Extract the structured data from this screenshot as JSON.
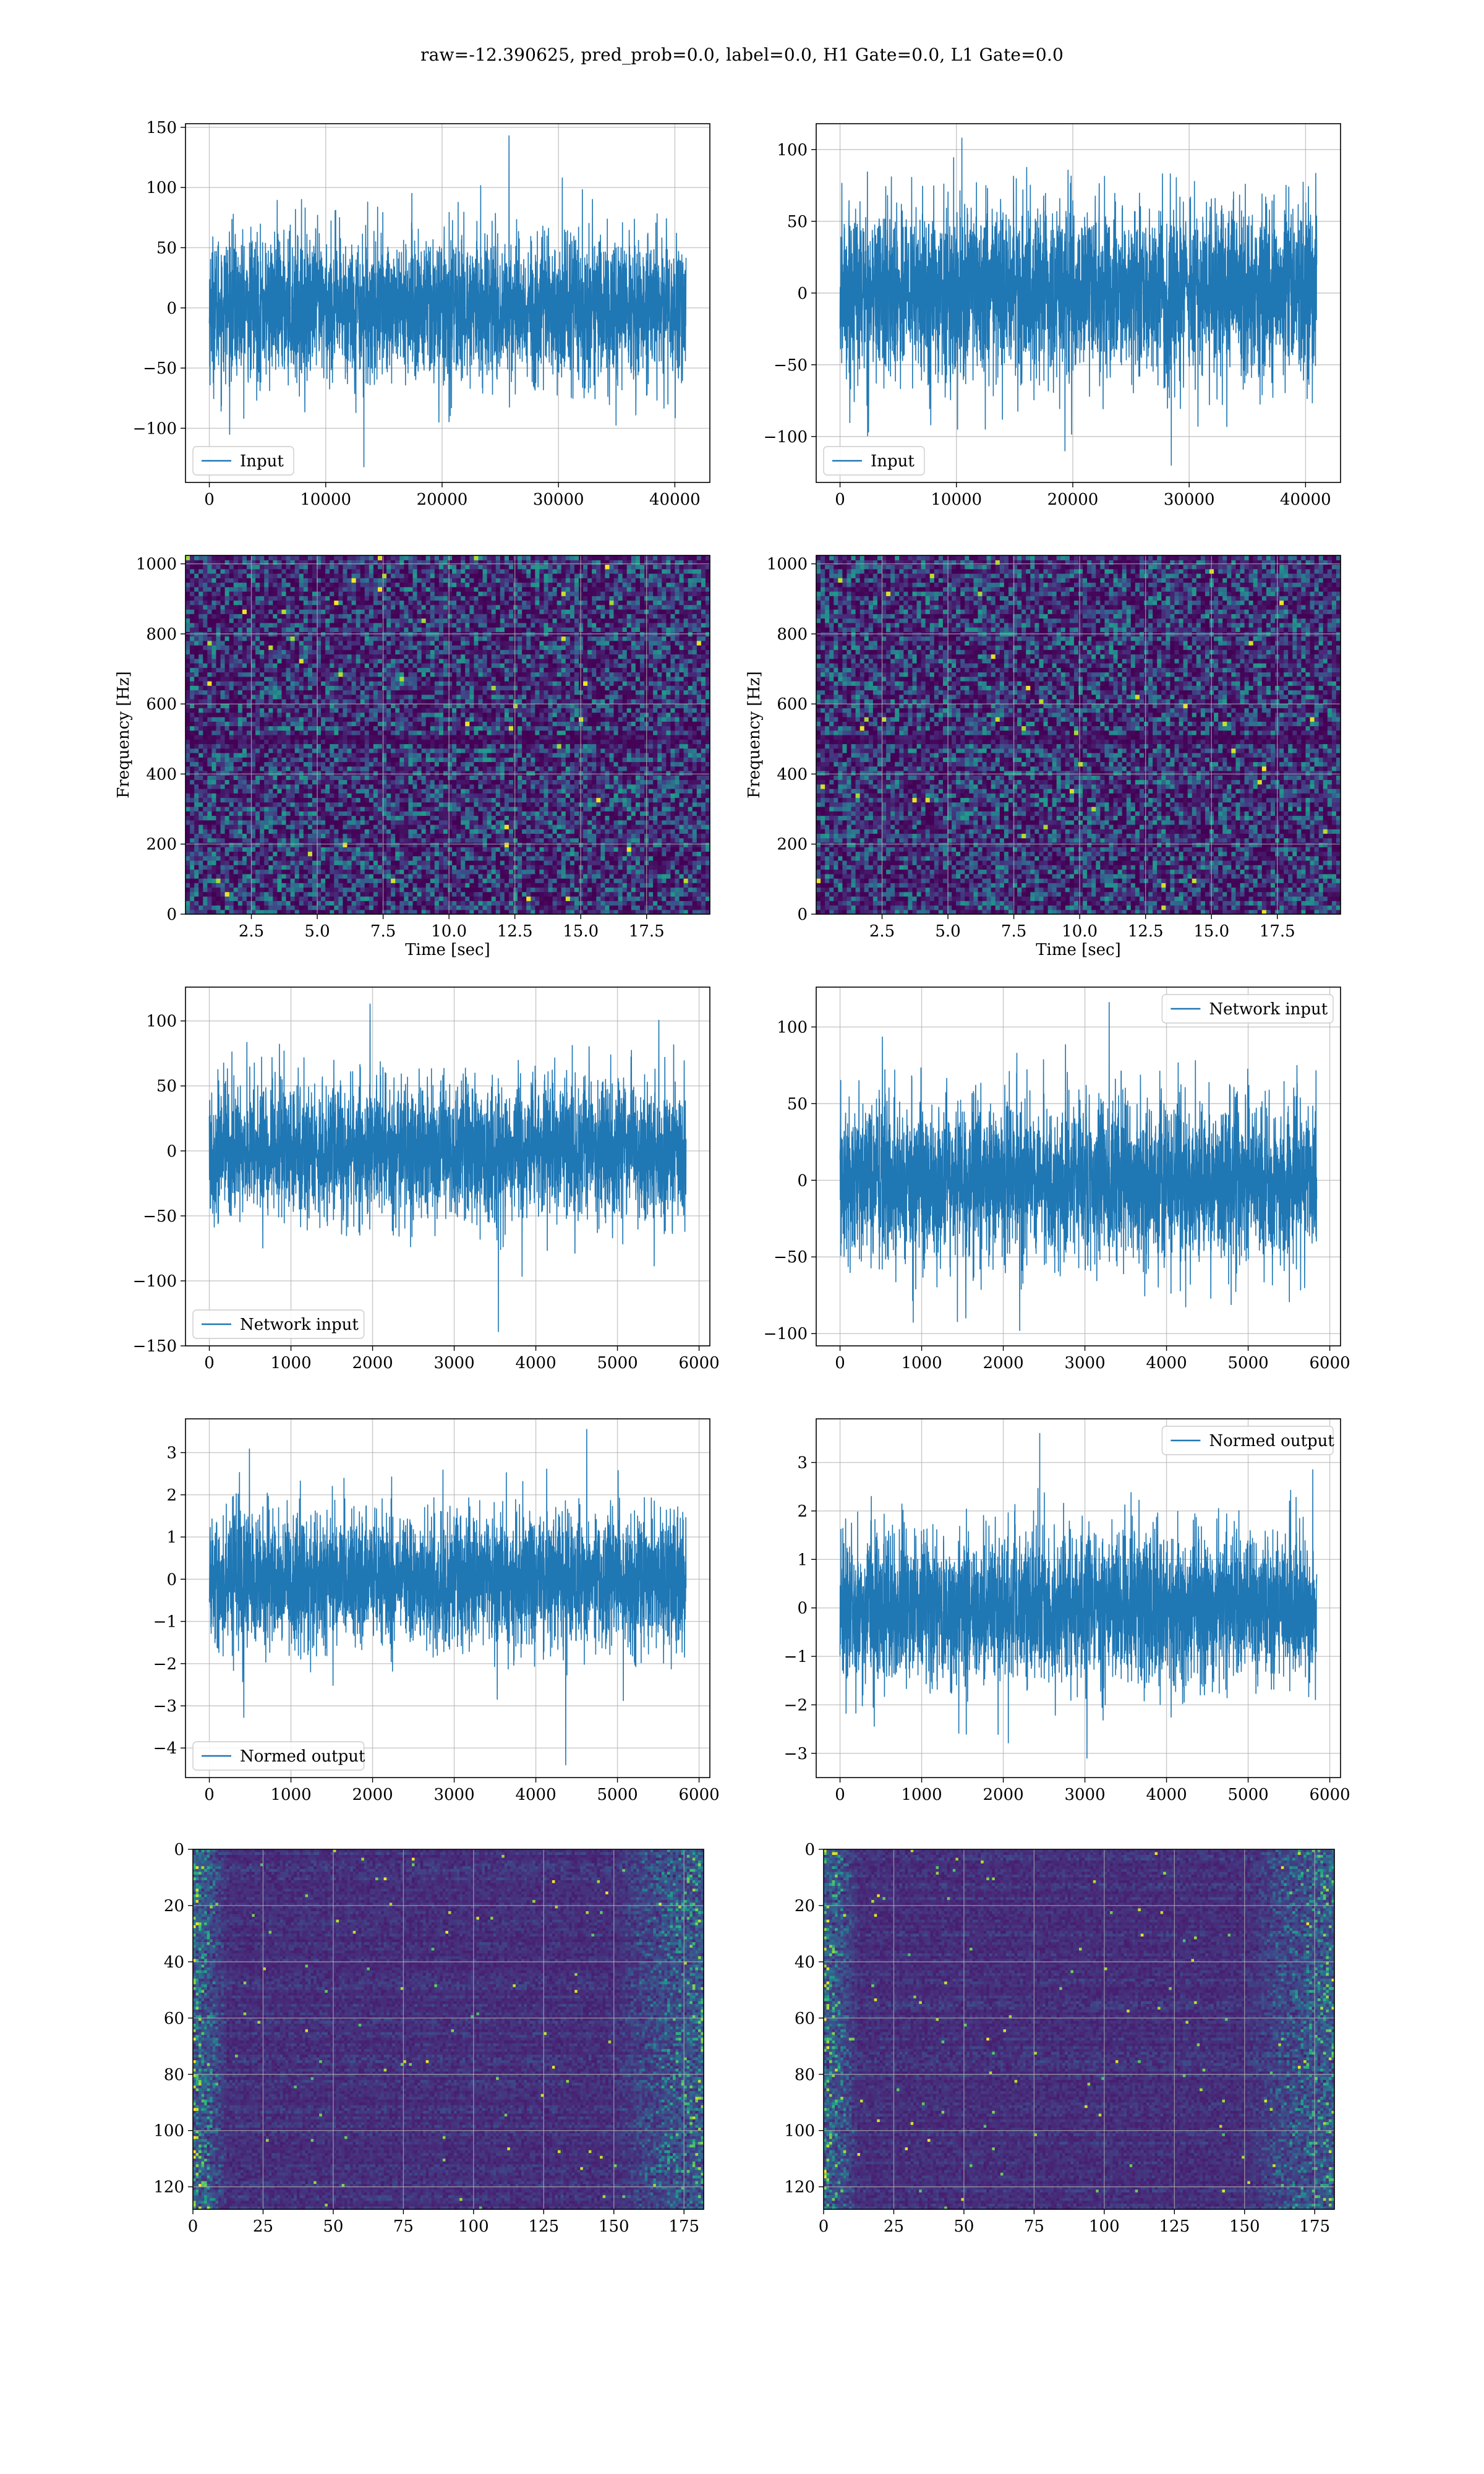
{
  "figure": {
    "suptitle": "raw=-12.390625, pred_prob=0.0, label=0.0, H1 Gate=0.0, L1 Gate=0.0"
  },
  "chart_data": [
    {
      "id": "input-h1",
      "type": "line",
      "series": [
        {
          "name": "Input"
        }
      ],
      "x_range": [
        0,
        40960
      ],
      "xlim": [
        -2048,
        43008
      ],
      "ylim": [
        -145,
        153
      ],
      "xticks": [
        0,
        10000,
        20000,
        30000,
        40000
      ],
      "xtick_labels": [
        "0",
        "10000",
        "20000",
        "30000",
        "40000"
      ],
      "yticks": [
        -100,
        -50,
        0,
        50,
        100,
        150
      ],
      "ytick_labels": [
        "−100",
        "−50",
        "0",
        "50",
        "100",
        "150"
      ],
      "band_sd": 30,
      "peak_max": 143,
      "peak_min": -132,
      "legend": "lower left",
      "color": "#1f77b4",
      "grid": true
    },
    {
      "id": "input-l1",
      "type": "line",
      "series": [
        {
          "name": "Input"
        }
      ],
      "x_range": [
        0,
        40960
      ],
      "xlim": [
        -2048,
        43008
      ],
      "ylim": [
        -132,
        118
      ],
      "xticks": [
        0,
        10000,
        20000,
        30000,
        40000
      ],
      "xtick_labels": [
        "0",
        "10000",
        "20000",
        "30000",
        "40000"
      ],
      "yticks": [
        -100,
        -50,
        0,
        50,
        100
      ],
      "ytick_labels": [
        "−100",
        "−50",
        "0",
        "50",
        "100"
      ],
      "band_sd": 30,
      "peak_max": 108,
      "peak_min": -120,
      "legend": "lower left",
      "color": "#1f77b4",
      "grid": true
    },
    {
      "id": "spec-h1",
      "type": "heatmap",
      "kind": "spectrogram",
      "xlabel": "Time [sec]",
      "ylabel": "Frequency [Hz]",
      "xlim": [
        0,
        19.9
      ],
      "ylim": [
        0,
        1024
      ],
      "xticks": [
        2.5,
        5.0,
        7.5,
        10.0,
        12.5,
        15.0,
        17.5
      ],
      "xtick_labels": [
        "2.5",
        "5.0",
        "7.5",
        "10.0",
        "12.5",
        "15.0",
        "17.5"
      ],
      "yticks": [
        0,
        200,
        400,
        600,
        800,
        1000
      ],
      "ytick_labels": [
        "0",
        "200",
        "400",
        "600",
        "800",
        "1000"
      ],
      "dark_band_hz": [
        490,
        510
      ],
      "grid": true,
      "colormap": "viridis"
    },
    {
      "id": "spec-l1",
      "type": "heatmap",
      "kind": "spectrogram",
      "xlabel": "Time [sec]",
      "ylabel": "Frequency [Hz]",
      "xlim": [
        0,
        19.9
      ],
      "ylim": [
        0,
        1024
      ],
      "xticks": [
        2.5,
        5.0,
        7.5,
        10.0,
        12.5,
        15.0,
        17.5
      ],
      "xtick_labels": [
        "2.5",
        "5.0",
        "7.5",
        "10.0",
        "12.5",
        "15.0",
        "17.5"
      ],
      "yticks": [
        0,
        200,
        400,
        600,
        800,
        1000
      ],
      "ytick_labels": [
        "0",
        "200",
        "400",
        "600",
        "800",
        "1000"
      ],
      "dark_band_hz": [
        490,
        510
      ],
      "grid": true,
      "colormap": "viridis"
    },
    {
      "id": "netin-h1",
      "type": "line",
      "series": [
        {
          "name": "Network input"
        }
      ],
      "x_range": [
        0,
        5840
      ],
      "xlim": [
        -292,
        6132
      ],
      "ylim": [
        -150,
        126
      ],
      "xticks": [
        0,
        1000,
        2000,
        3000,
        4000,
        5000,
        6000
      ],
      "xtick_labels": [
        "0",
        "1000",
        "2000",
        "3000",
        "4000",
        "5000",
        "6000"
      ],
      "yticks": [
        -150,
        -100,
        -50,
        0,
        50,
        100
      ],
      "ytick_labels": [
        "−150",
        "−100",
        "−50",
        "0",
        "50",
        "100"
      ],
      "band_sd": 26,
      "peak_max": 113,
      "peak_min": -139,
      "legend": "lower left",
      "color": "#1f77b4",
      "grid": true
    },
    {
      "id": "netin-l1",
      "type": "line",
      "series": [
        {
          "name": "Network input"
        }
      ],
      "x_range": [
        0,
        5840
      ],
      "xlim": [
        -292,
        6132
      ],
      "ylim": [
        -108,
        126
      ],
      "xticks": [
        0,
        1000,
        2000,
        3000,
        4000,
        5000,
        6000
      ],
      "xtick_labels": [
        "0",
        "1000",
        "2000",
        "3000",
        "4000",
        "5000",
        "6000"
      ],
      "yticks": [
        -100,
        -50,
        0,
        50,
        100
      ],
      "ytick_labels": [
        "−100",
        "−50",
        "0",
        "50",
        "100"
      ],
      "band_sd": 26,
      "peak_max": 116,
      "peak_min": -98,
      "legend": "upper right",
      "color": "#1f77b4",
      "grid": true
    },
    {
      "id": "norm-h1",
      "type": "line",
      "series": [
        {
          "name": "Normed output"
        }
      ],
      "x_range": [
        0,
        5840
      ],
      "xlim": [
        -292,
        6132
      ],
      "ylim": [
        -4.7,
        3.8
      ],
      "xticks": [
        0,
        1000,
        2000,
        3000,
        4000,
        5000,
        6000
      ],
      "xtick_labels": [
        "0",
        "1000",
        "2000",
        "3000",
        "4000",
        "5000",
        "6000"
      ],
      "yticks": [
        -4,
        -3,
        -2,
        -1,
        0,
        1,
        2,
        3
      ],
      "ytick_labels": [
        "−4",
        "−3",
        "−2",
        "−1",
        "0",
        "1",
        "2",
        "3"
      ],
      "band_sd": 0.78,
      "peak_max": 3.55,
      "peak_min": -4.4,
      "legend": "lower left",
      "color": "#1f77b4",
      "grid": true
    },
    {
      "id": "norm-l1",
      "type": "line",
      "series": [
        {
          "name": "Normed output"
        }
      ],
      "x_range": [
        0,
        5840
      ],
      "xlim": [
        -292,
        6132
      ],
      "ylim": [
        -3.5,
        3.9
      ],
      "xticks": [
        0,
        1000,
        2000,
        3000,
        4000,
        5000,
        6000
      ],
      "xtick_labels": [
        "0",
        "1000",
        "2000",
        "3000",
        "4000",
        "5000",
        "6000"
      ],
      "yticks": [
        -3,
        -2,
        -1,
        0,
        1,
        2,
        3
      ],
      "ytick_labels": [
        "−3",
        "−2",
        "−1",
        "0",
        "1",
        "2",
        "3"
      ],
      "band_sd": 0.8,
      "peak_max": 3.6,
      "peak_min": -3.1,
      "legend": "upper right",
      "color": "#1f77b4",
      "grid": true
    },
    {
      "id": "feat-h1",
      "type": "heatmap",
      "kind": "feature-map",
      "xlim": [
        0,
        182
      ],
      "ylim_inverted": [
        0,
        128
      ],
      "xticks": [
        0,
        25,
        50,
        75,
        100,
        125,
        150,
        175
      ],
      "xtick_labels": [
        "0",
        "25",
        "50",
        "75",
        "100",
        "125",
        "150",
        "175"
      ],
      "yticks": [
        0,
        20,
        40,
        60,
        80,
        100,
        120
      ],
      "ytick_labels": [
        "0",
        "20",
        "40",
        "60",
        "80",
        "100",
        "120"
      ],
      "grid": true,
      "colormap": "viridis"
    },
    {
      "id": "feat-l1",
      "type": "heatmap",
      "kind": "feature-map",
      "xlim": [
        0,
        182
      ],
      "ylim_inverted": [
        0,
        128
      ],
      "xticks": [
        0,
        25,
        50,
        75,
        100,
        125,
        150,
        175
      ],
      "xtick_labels": [
        "0",
        "25",
        "50",
        "75",
        "100",
        "125",
        "150",
        "175"
      ],
      "yticks": [
        0,
        20,
        40,
        60,
        80,
        100,
        120
      ],
      "ytick_labels": [
        "0",
        "20",
        "40",
        "60",
        "80",
        "100",
        "120"
      ],
      "grid": true,
      "colormap": "viridis"
    }
  ]
}
